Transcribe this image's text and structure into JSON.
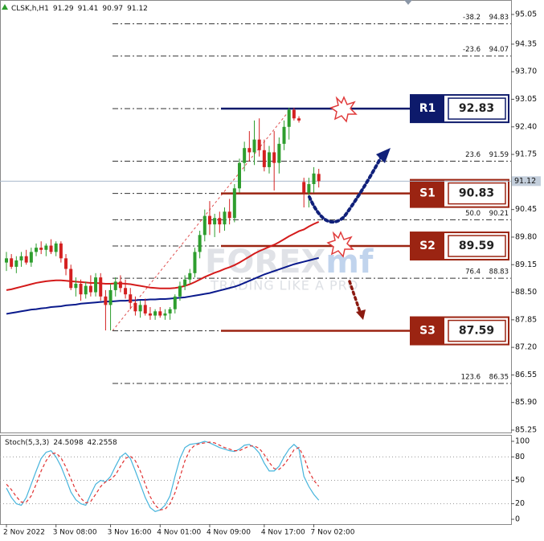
{
  "chart_data": [
    {
      "type": "candlestick",
      "title": "CLSK,h,H1",
      "ohlc_header": [
        91.29,
        91.41,
        90.97,
        91.12
      ],
      "categories": [
        "2 Nov 2022",
        null,
        null,
        null,
        null,
        null,
        null,
        null,
        null,
        null,
        "3 Nov 08:00",
        null,
        null,
        null,
        null,
        null,
        null,
        null,
        null,
        null,
        null,
        "3 Nov 16:00",
        null,
        null,
        null,
        null,
        null,
        null,
        null,
        null,
        null,
        "4 Nov 01:00",
        null,
        null,
        null,
        null,
        null,
        null,
        null,
        null,
        null,
        "4 Nov 09:00",
        null,
        null,
        null,
        null,
        null,
        null,
        null,
        null,
        null,
        null,
        "4 Nov 17:00",
        null,
        null,
        null,
        null,
        null,
        null,
        null,
        null,
        null,
        "7 Nov 02:00",
        null
      ],
      "open": [
        89.2,
        89.3,
        89.1,
        89.25,
        89.35,
        89.2,
        89.45,
        89.55,
        89.5,
        89.6,
        89.45,
        89.65,
        89.3,
        89.05,
        88.6,
        88.7,
        88.45,
        88.65,
        88.5,
        88.85,
        88.4,
        88.2,
        88.55,
        88.75,
        88.6,
        88.45,
        88.25,
        88.05,
        88.2,
        88.0,
        87.95,
        88.05,
        87.95,
        88.0,
        88.1,
        88.4,
        88.65,
        88.8,
        88.95,
        89.45,
        89.85,
        90.3,
        90.1,
        90.25,
        90.1,
        90.4,
        90.25,
        90.95,
        91.55,
        91.9,
        91.8,
        92.1,
        91.85,
        91.45,
        91.8,
        91.55,
        92.0,
        92.4,
        92.8,
        92.6,
        91.1,
        90.85,
        91.05,
        91.29
      ],
      "high": [
        89.45,
        89.4,
        89.35,
        89.45,
        89.5,
        89.55,
        89.65,
        89.7,
        89.65,
        89.75,
        89.7,
        89.7,
        89.4,
        89.15,
        88.85,
        88.8,
        88.75,
        88.9,
        88.95,
        88.95,
        88.55,
        88.7,
        88.85,
        88.9,
        88.8,
        88.6,
        88.4,
        88.3,
        88.35,
        88.15,
        88.1,
        88.15,
        88.1,
        88.15,
        88.45,
        88.75,
        88.9,
        89.05,
        89.55,
        89.95,
        90.45,
        90.65,
        90.35,
        90.4,
        90.5,
        90.7,
        91.05,
        91.65,
        92.05,
        92.3,
        92.55,
        92.6,
        92.1,
        91.95,
        92.3,
        92.15,
        92.55,
        92.85,
        92.85,
        92.65,
        91.2,
        91.2,
        91.45,
        91.41
      ],
      "low": [
        89.0,
        89.05,
        88.95,
        89.1,
        89.15,
        89.1,
        89.35,
        89.4,
        89.35,
        89.4,
        89.35,
        89.2,
        88.9,
        88.55,
        88.4,
        88.3,
        88.35,
        88.4,
        88.4,
        88.3,
        87.6,
        87.6,
        88.4,
        88.5,
        88.35,
        88.1,
        87.95,
        87.9,
        87.95,
        87.85,
        87.85,
        87.9,
        87.85,
        87.85,
        88.0,
        88.3,
        88.55,
        88.7,
        88.85,
        89.3,
        89.7,
        89.85,
        89.8,
        89.9,
        89.95,
        90.1,
        90.15,
        90.85,
        91.35,
        91.6,
        91.5,
        91.7,
        91.35,
        91.3,
        90.9,
        91.3,
        91.85,
        92.1,
        92.55,
        92.5,
        90.5,
        90.5,
        90.85,
        90.97
      ],
      "close": [
        89.3,
        89.1,
        89.25,
        89.35,
        89.2,
        89.45,
        89.55,
        89.5,
        89.6,
        89.45,
        89.65,
        89.3,
        89.05,
        88.6,
        88.7,
        88.45,
        88.65,
        88.5,
        88.85,
        88.4,
        88.2,
        88.55,
        88.75,
        88.6,
        88.45,
        88.25,
        88.05,
        88.2,
        88.0,
        87.95,
        88.05,
        87.95,
        88.0,
        88.1,
        88.4,
        88.65,
        88.8,
        88.95,
        89.45,
        89.85,
        90.3,
        90.1,
        90.25,
        90.1,
        90.4,
        90.25,
        90.95,
        91.55,
        91.9,
        91.8,
        92.1,
        91.85,
        91.45,
        91.8,
        91.55,
        92.0,
        92.4,
        92.8,
        92.6,
        92.55,
        90.85,
        91.05,
        91.3,
        91.12
      ],
      "up_color": "#2e9e2e",
      "down_color": "#d42020",
      "moving_averages": [
        {
          "color": "#d41b1b",
          "values": [
            88.55,
            88.57,
            88.6,
            88.63,
            88.66,
            88.69,
            88.72,
            88.74,
            88.76,
            88.77,
            88.78,
            88.78,
            88.77,
            88.76,
            88.75,
            88.74,
            88.73,
            88.72,
            88.72,
            88.71,
            88.7,
            88.7,
            88.71,
            88.71,
            88.7,
            88.69,
            88.67,
            88.65,
            88.63,
            88.61,
            88.6,
            88.59,
            88.59,
            88.59,
            88.6,
            88.62,
            88.65,
            88.69,
            88.74,
            88.8,
            88.86,
            88.91,
            88.96,
            89.0,
            89.05,
            89.09,
            89.14,
            89.2,
            89.27,
            89.34,
            89.41,
            89.47,
            89.52,
            89.57,
            89.62,
            89.68,
            89.75,
            89.82,
            89.88,
            89.94,
            89.98,
            90.05,
            90.11,
            90.16
          ]
        },
        {
          "color": "#0a1a8c",
          "values": [
            87.99,
            88.01,
            88.03,
            88.05,
            88.07,
            88.09,
            88.1,
            88.12,
            88.13,
            88.15,
            88.16,
            88.17,
            88.19,
            88.2,
            88.21,
            88.23,
            88.24,
            88.25,
            88.26,
            88.27,
            88.28,
            88.28,
            88.29,
            88.3,
            88.3,
            88.31,
            88.31,
            88.32,
            88.32,
            88.33,
            88.33,
            88.34,
            88.34,
            88.35,
            88.36,
            88.37,
            88.38,
            88.4,
            88.42,
            88.44,
            88.46,
            88.48,
            88.51,
            88.54,
            88.57,
            88.6,
            88.63,
            88.67,
            88.72,
            88.77,
            88.82,
            88.87,
            88.92,
            88.96,
            89.0,
            89.04,
            89.08,
            89.12,
            89.16,
            89.19,
            89.22,
            89.25,
            89.28,
            89.31
          ]
        }
      ],
      "ylim": [
        85.25,
        95.05
      ],
      "yticks": [
        95.05,
        94.35,
        {
          "value": 93.7,
          "label": "93.70"
        },
        93.05,
        {
          "value": 92.4,
          "label": "92.40"
        },
        91.75,
        90.45,
        {
          "value": 89.8,
          "label": "89.80"
        },
        89.15,
        {
          "value": 88.5,
          "label": "88.50"
        },
        87.85,
        {
          "value": 87.2,
          "label": "87.20"
        },
        86.55,
        {
          "value": 85.9,
          "label": "85.90"
        },
        85.25
      ],
      "current_price": 91.12,
      "fibonacci": [
        {
          "label": "-38.2",
          "value": 94.83
        },
        {
          "label": "-23.6",
          "value": 94.07
        },
        {
          "label": "23.6",
          "value": 91.59
        },
        {
          "label": "50.0",
          "value": 90.21
        },
        {
          "label": "76.4",
          "value": 88.83
        },
        {
          "label": "123.6",
          "value": 86.35
        }
      ],
      "levels": [
        {
          "name": "R1",
          "value": 92.83,
          "color": "#0d1a6b"
        },
        {
          "name": "S1",
          "value": 90.83,
          "color": "#9b2412"
        },
        {
          "name": "S2",
          "value": 89.59,
          "color": "#9b2412"
        },
        {
          "name": "S3",
          "value": 87.59,
          "color": "#9b2412"
        }
      ],
      "watermark": {
        "brand": "FOREX",
        "suffix": "mf",
        "tagline": "TRADING LIKE A PRO"
      }
    },
    {
      "type": "line",
      "title": "Stoch(5,3,3)",
      "header_values": [
        24.5098,
        42.2558
      ],
      "series": [
        {
          "color": "#46b4dc",
          "values": [
            40,
            28,
            20,
            18,
            28,
            45,
            62,
            78,
            86,
            88,
            80,
            68,
            52,
            35,
            25,
            20,
            18,
            32,
            45,
            50,
            48,
            55,
            68,
            80,
            85,
            78,
            62,
            45,
            28,
            15,
            10,
            12,
            18,
            30,
            55,
            78,
            92,
            96,
            97,
            98,
            100,
            98,
            95,
            92,
            90,
            88,
            87,
            90,
            95,
            96,
            92,
            85,
            72,
            62,
            62,
            68,
            80,
            90,
            96,
            90,
            55,
            42,
            32,
            24.5098
          ]
        },
        {
          "color": "#e03030",
          "dashed": true,
          "values": [
            45,
            38,
            29,
            22,
            22,
            30,
            45,
            62,
            75,
            84,
            85,
            79,
            67,
            52,
            37,
            27,
            21,
            23,
            32,
            42,
            48,
            51,
            57,
            68,
            78,
            81,
            75,
            62,
            45,
            29,
            18,
            12,
            13,
            20,
            34,
            54,
            75,
            89,
            95,
            97,
            98,
            99,
            98,
            95,
            92,
            90,
            88,
            88,
            91,
            94,
            94,
            91,
            83,
            73,
            65,
            64,
            70,
            79,
            89,
            92,
            80,
            62,
            50,
            42.2558
          ]
        }
      ],
      "ylim": [
        0,
        100
      ],
      "yticks": [
        0,
        20,
        50,
        80,
        100
      ]
    }
  ]
}
